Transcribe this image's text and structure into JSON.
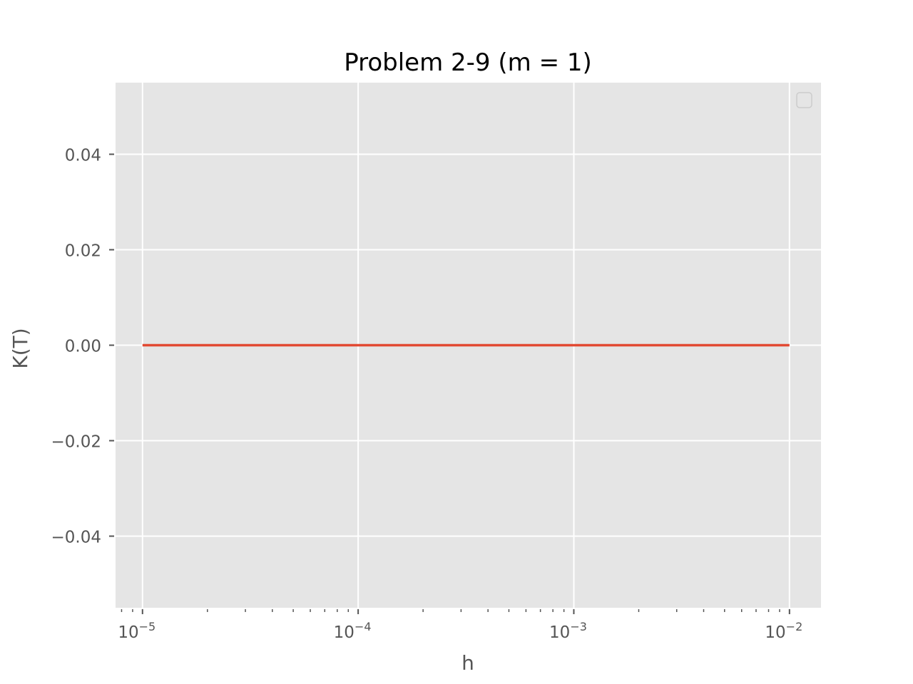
{
  "chart_data": {
    "type": "line",
    "title": "Problem 2-9 (m = 1)",
    "xlabel": "h",
    "ylabel": "K(T)",
    "xscale": "log",
    "xlim": [
      7.5e-06,
      0.014
    ],
    "ylim": [
      -0.055,
      0.055
    ],
    "x_ticks": [
      {
        "value": 1e-05,
        "base": "10",
        "exp": "−5"
      },
      {
        "value": 0.0001,
        "base": "10",
        "exp": "−4"
      },
      {
        "value": 0.001,
        "base": "10",
        "exp": "−3"
      },
      {
        "value": 0.01,
        "base": "10",
        "exp": "−2"
      }
    ],
    "y_ticks": [
      {
        "value": 0.04,
        "label": "0.04"
      },
      {
        "value": 0.02,
        "label": "0.02"
      },
      {
        "value": 0.0,
        "label": "0.00"
      },
      {
        "value": -0.02,
        "label": "−0.02"
      },
      {
        "value": -0.04,
        "label": "−0.04"
      }
    ],
    "grid": true,
    "legend": "top-right (empty)",
    "background": "#e5e5e5",
    "series": [
      {
        "color": "#e24a33",
        "x": [
          1e-05,
          0.0001,
          0.001,
          0.01
        ],
        "y": [
          0.0,
          0.0,
          0.0,
          0.0
        ]
      }
    ]
  }
}
